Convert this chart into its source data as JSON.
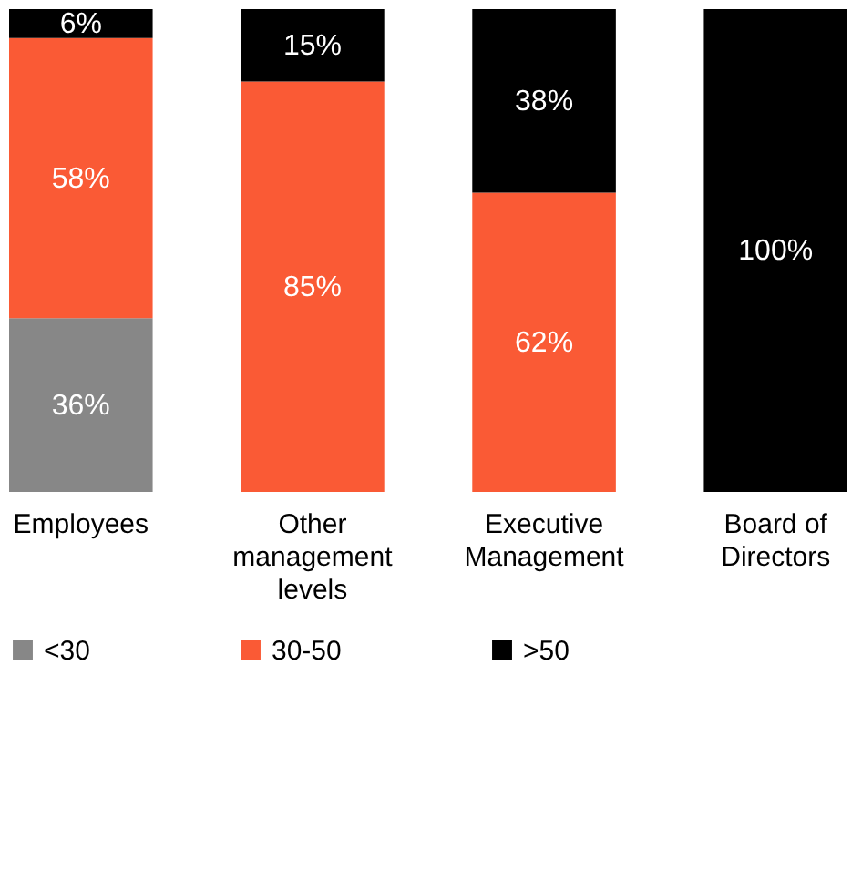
{
  "chart_data": {
    "type": "bar",
    "stacked": true,
    "legend": "bottom",
    "grid": false,
    "categories": [
      "Employees",
      "Other management levels",
      "Executive Management",
      "Board of Directors"
    ],
    "series": [
      {
        "name": "<30",
        "color": "#878787",
        "values": [
          36,
          0,
          0,
          0
        ],
        "value_labels": [
          "36%",
          null,
          null,
          null
        ]
      },
      {
        "name": "30-50",
        "color": "#fa5a35",
        "values": [
          58,
          85,
          62,
          0
        ],
        "value_labels": [
          "58%",
          "85%",
          "62%",
          null
        ]
      },
      {
        "name": ">50",
        "color": "#000000",
        "values": [
          6,
          15,
          38,
          100
        ],
        "value_labels": [
          "6%",
          "15%",
          "38%",
          "100%"
        ]
      }
    ]
  }
}
